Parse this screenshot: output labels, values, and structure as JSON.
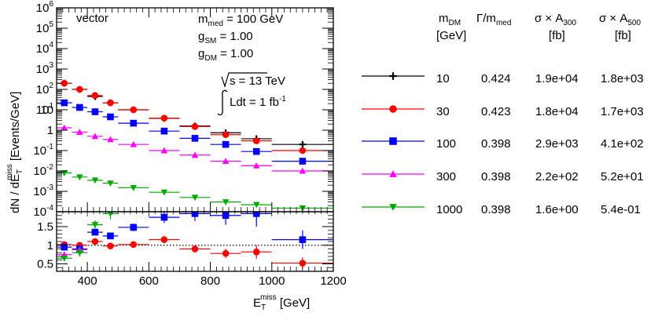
{
  "chart_data": {
    "type": "scatter",
    "upper_panel": {
      "ylabel_main": "dN / dE",
      "ylabel_sub": "T",
      "ylabel_sup": "miss",
      "ylabel_units": " [Events/GeV]",
      "yscale": "log",
      "ylim": [
        0.0001,
        1000000
      ],
      "ytick_exponents": [
        "6",
        "5",
        "4",
        "3",
        "2",
        "1",
        "-1",
        "-2",
        "-3",
        "-4"
      ],
      "ytick_plain": [
        "10",
        "1"
      ],
      "ytick_base": "10"
    },
    "ratio_panel": {
      "ylim": [
        0.3,
        1.9
      ],
      "yticks": [
        "0.5",
        "1",
        "1.5"
      ],
      "reference_line": 1
    },
    "x": {
      "label_main": "E",
      "label_sub": "T",
      "label_sup": "miss",
      "label_units": " [GeV]",
      "xlim": [
        300,
        1200
      ],
      "xticks": [
        "400",
        "600",
        "800",
        "1000",
        "1200"
      ]
    },
    "annotations": {
      "model": "vector",
      "m_med": "m",
      "m_med_sub": "med",
      "m_med_val": " = 100 GeV",
      "gsm": "g",
      "gsm_sub": "SM",
      "gsm_val": " = 1.00",
      "gdm": "g",
      "gdm_sub": "DM",
      "gdm_val": " = 1.00",
      "sqrt_s": "s = 13 TeV",
      "lumi": "Ldt = 1 fb",
      "lumi_sup": "-1"
    },
    "legend_table": {
      "col_mdm_main": "m",
      "col_mdm_sub": "DM",
      "col_mdm_unit": "[GeV]",
      "col_width_main": "Γ/m",
      "col_width_sub": "med",
      "col_xs300_main": "σ × A",
      "col_xs300_sub": "300",
      "col_xs300_unit": "[fb]",
      "col_xs500_main": "σ × A",
      "col_xs500_sub": "500",
      "col_xs500_unit": "[fb]",
      "rows": [
        {
          "mdm": "10",
          "width": "0.424",
          "xs300": "1.9e+04",
          "xs500": "1.8e+03",
          "color": "#000000",
          "marker": "plus"
        },
        {
          "mdm": "30",
          "width": "0.423",
          "xs300": "1.8e+04",
          "xs500": "1.7e+03",
          "color": "#ff0000",
          "marker": "circle"
        },
        {
          "mdm": "100",
          "width": "0.398",
          "xs300": "2.9e+03",
          "xs500": "4.1e+02",
          "color": "#0000ff",
          "marker": "square"
        },
        {
          "mdm": "300",
          "width": "0.398",
          "xs300": "2.2e+02",
          "xs500": "5.2e+01",
          "color": "#ff00ff",
          "marker": "triangle-up"
        },
        {
          "mdm": "1000",
          "width": "0.398",
          "xs300": "1.6e+00",
          "xs500": "5.4e-01",
          "color": "#00aa00",
          "marker": "triangle-down"
        }
      ]
    },
    "bins": [
      [
        300,
        350
      ],
      [
        350,
        400
      ],
      [
        400,
        450
      ],
      [
        450,
        500
      ],
      [
        500,
        600
      ],
      [
        600,
        700
      ],
      [
        700,
        800
      ],
      [
        800,
        900
      ],
      [
        900,
        1000
      ],
      [
        1000,
        1200
      ]
    ],
    "series": [
      {
        "mdm": "10",
        "color": "#000000",
        "marker": "plus",
        "values": [
          200,
          100,
          45,
          22,
          10,
          3.8,
          1.6,
          0.75,
          0.38,
          0.2
        ]
      },
      {
        "mdm": "30",
        "color": "#ff0000",
        "marker": "circle",
        "values": [
          200,
          100,
          50,
          22,
          10,
          3.9,
          1.5,
          0.6,
          0.3,
          0.1
        ]
      },
      {
        "mdm": "100",
        "color": "#0000ff",
        "marker": "square",
        "values": [
          22,
          13,
          8,
          4.5,
          2.2,
          0.9,
          0.4,
          0.2,
          0.09,
          0.03
        ]
      },
      {
        "mdm": "300",
        "color": "#ff00ff",
        "marker": "triangle-up",
        "values": [
          1.3,
          0.8,
          0.5,
          0.35,
          0.2,
          0.1,
          0.06,
          0.03,
          0.018,
          0.01
        ]
      },
      {
        "mdm": "1000",
        "color": "#00aa00",
        "marker": "triangle-down",
        "values": [
          0.008,
          0.005,
          0.0035,
          0.0025,
          0.0015,
          0.0009,
          0.0005,
          0.0003,
          0.00022,
          0.00015
        ]
      }
    ],
    "ratio_series": [
      {
        "mdm": "30",
        "color": "#ff0000",
        "marker": "circle",
        "values": [
          1.02,
          1.0,
          1.1,
          0.98,
          1.02,
          1.15,
          0.9,
          0.78,
          0.82,
          0.52
        ],
        "errors": [
          0.05,
          0.05,
          0.07,
          0.06,
          0.08,
          0.1,
          0.1,
          0.12,
          0.18,
          0.15
        ]
      },
      {
        "mdm": "100",
        "color": "#0000ff",
        "marker": "square",
        "values": [
          0.95,
          0.9,
          1.35,
          1.25,
          1.48,
          1.75,
          1.85,
          1.8,
          1.85,
          1.15
        ],
        "errors": [
          0.06,
          0.06,
          0.08,
          0.08,
          0.1,
          0.15,
          0.2,
          0.25,
          0.35,
          0.25
        ]
      },
      {
        "mdm": "300",
        "color": "#ff00ff",
        "marker": "triangle-up",
        "values": [
          0.75,
          0.88,
          1.0,
          1.0,
          1.0,
          1.0,
          1.0,
          1.0,
          1.0,
          1.0
        ],
        "errors": [
          0.08,
          0.08,
          0.1,
          0.1,
          0.1,
          0.1,
          0.1,
          0.1,
          0.1,
          0.1
        ],
        "visible_points": 2
      },
      {
        "mdm": "1000",
        "color": "#00aa00",
        "marker": "triangle-down",
        "values": [
          0.65,
          0.8,
          1.55,
          1.85,
          1.0,
          1.0,
          1.0,
          1.0,
          1.0,
          1.0
        ],
        "errors": [
          0.08,
          0.1,
          0.12,
          0.15,
          0.1,
          0.1,
          0.1,
          0.1,
          0.1,
          0.1
        ],
        "visible_points": 4
      }
    ]
  }
}
